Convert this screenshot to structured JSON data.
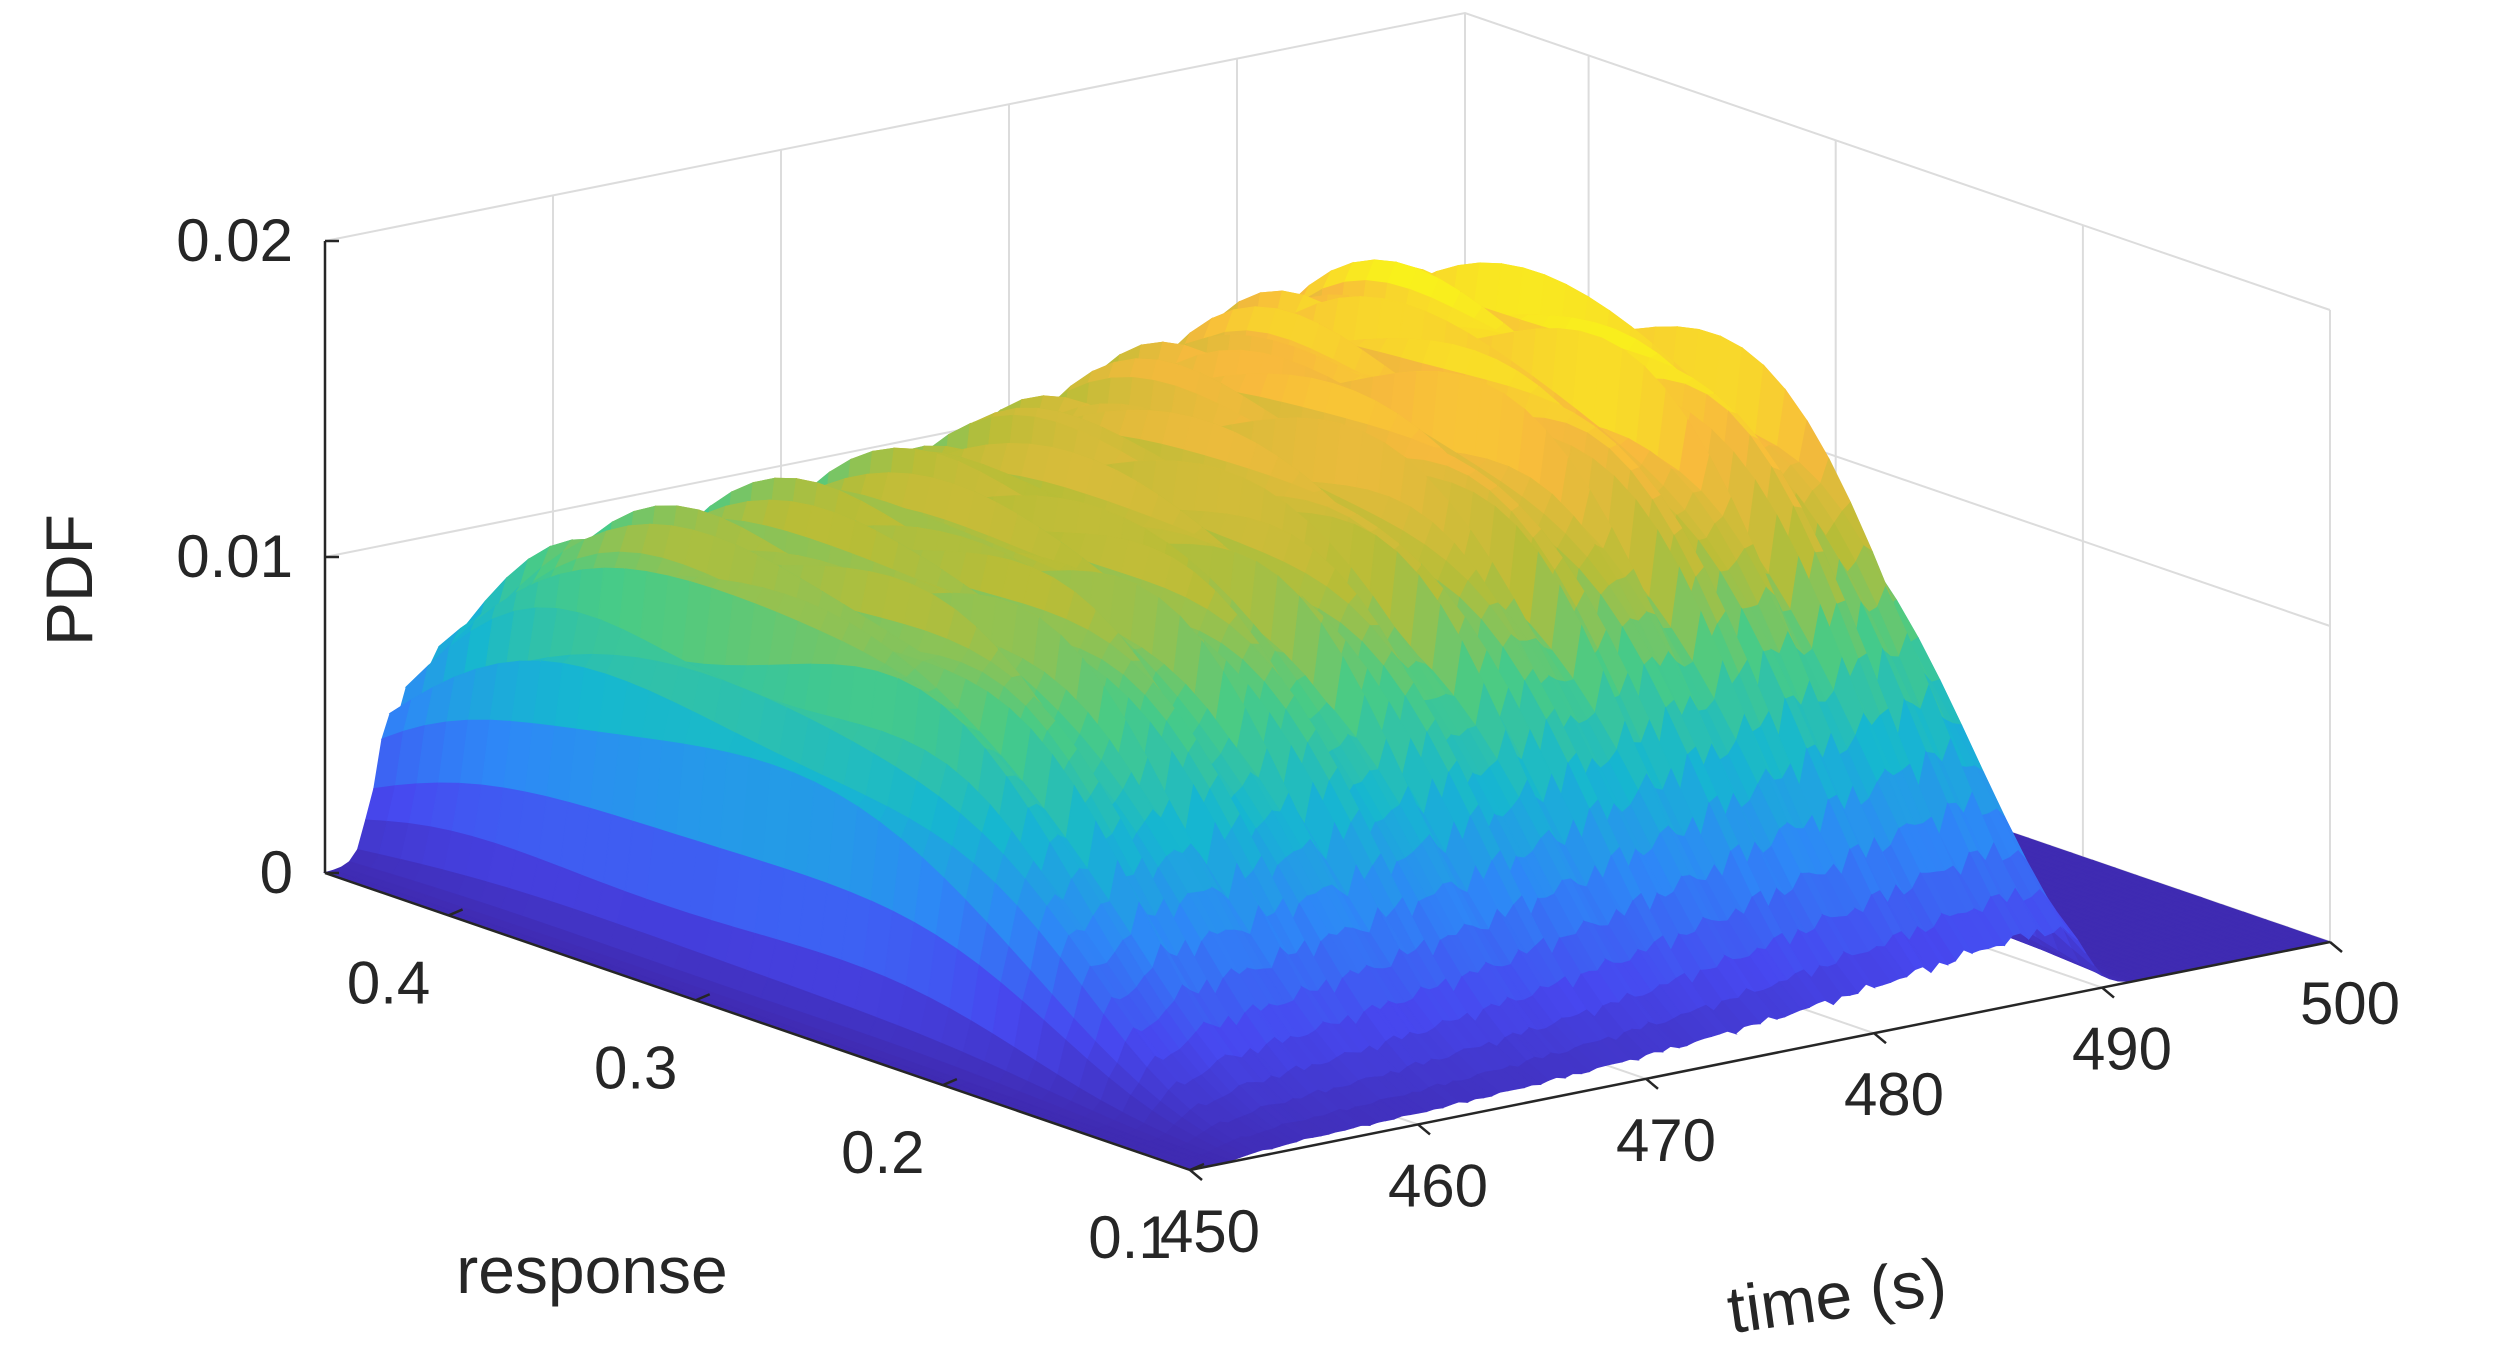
{
  "chart_data": {
    "type": "surface",
    "title": "",
    "xlabel": "time (s)",
    "ylabel": "response",
    "zlabel": "PDF",
    "xlim": [
      450,
      500
    ],
    "ylim": [
      0.1,
      0.45
    ],
    "zlim": [
      0,
      0.02
    ],
    "x_ticks": [
      "450",
      "460",
      "470",
      "480",
      "490",
      "500"
    ],
    "y_ticks": [
      "0.1",
      "0.2",
      "0.3",
      "0.4"
    ],
    "z_ticks": [
      "0",
      "0.01",
      "0.02"
    ],
    "grid": true,
    "colormap": "parula",
    "colors": [
      "#3e26a8",
      "#4748f0",
      "#2e87f7",
      "#16b7d0",
      "#48cb86",
      "#b8bd37",
      "#f8ba3d",
      "#f9fb15"
    ],
    "series": [
      {
        "x": [
          450,
          455,
          460,
          465,
          470,
          475,
          480,
          485,
          490,
          495,
          500
        ],
        "peak_response": [
          0.32,
          0.315,
          0.31,
          0.305,
          0.3,
          0.295,
          0.29,
          0.285,
          0.28,
          0.275,
          0.27
        ],
        "peak_pdf": [
          0.0005,
          0.0115,
          0.0118,
          0.0123,
          0.013,
          0.014,
          0.0152,
          0.0163,
          0.0158,
          0.0008,
          0.0002
        ]
      }
    ]
  }
}
